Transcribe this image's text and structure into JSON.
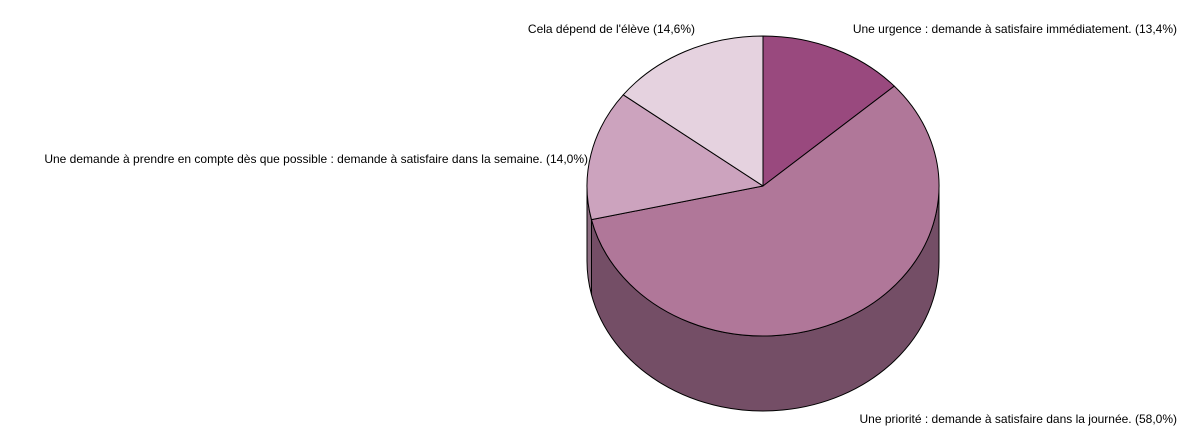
{
  "chart_data": {
    "type": "pie",
    "style": "3d",
    "title": "",
    "slices": [
      {
        "label": "Une urgence : demande à satisfaire immédiatement. (13,4%)",
        "value": 13.4,
        "color": "#99497e",
        "side_color": "#6d3159"
      },
      {
        "label": "Une priorité : demande à satisfaire dans la journée. (58,0%)",
        "value": 58.0,
        "color": "#b07799",
        "side_color": "#744e66"
      },
      {
        "label": "Une demande à prendre en compte dès que possible : demande à satisfaire dans la semaine. (14,0%)",
        "value": 14.0,
        "color": "#cca3be",
        "side_color": "#8f6e83"
      },
      {
        "label": "Cela dépend de l'élève (14,6%)",
        "value": 14.6,
        "color": "#e5d2df",
        "side_color": "#a8949f"
      }
    ]
  }
}
